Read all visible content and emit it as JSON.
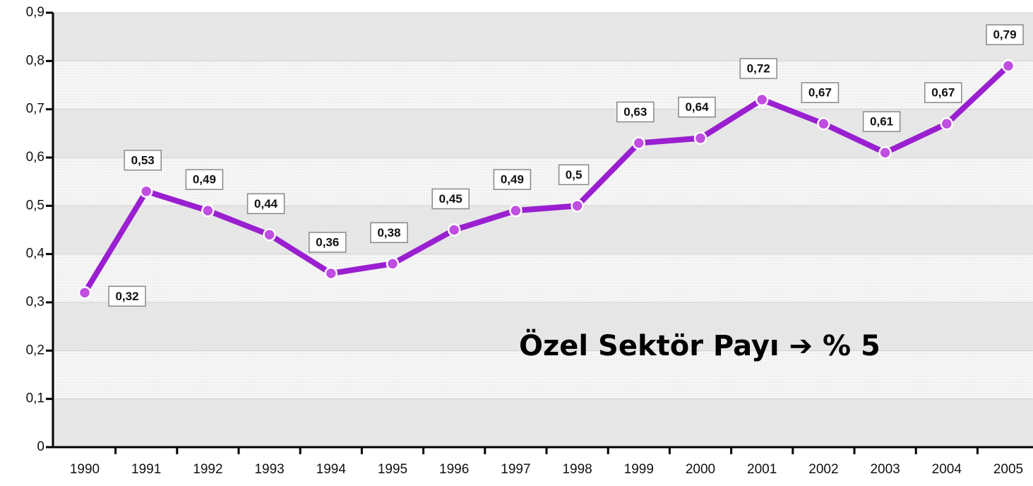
{
  "chart_data": {
    "type": "line",
    "annotation": "Özel Sektör Payı ➔ % 5",
    "categories": [
      "1990",
      "1991",
      "1992",
      "1993",
      "1994",
      "1995",
      "1996",
      "1997",
      "1998",
      "1999",
      "2000",
      "2001",
      "2002",
      "2003",
      "2004",
      "2005"
    ],
    "series": [
      {
        "color": "#9a1fd0",
        "values": [
          0.32,
          0.53,
          0.49,
          0.44,
          0.36,
          0.38,
          0.45,
          0.49,
          0.5,
          0.63,
          0.64,
          0.72,
          0.67,
          0.61,
          0.67,
          0.79
        ],
        "value_labels": [
          "0,32",
          "0,53",
          "0,49",
          "0,44",
          "0,36",
          "0,38",
          "0,45",
          "0,49",
          "0,5",
          "0,63",
          "0,64",
          "0,72",
          "0,67",
          "0,61",
          "0,67",
          "0,79"
        ]
      }
    ],
    "ylim": [
      0,
      0.9
    ],
    "yticks": [
      0,
      {
        "value": 0.1,
        "label": "0,1"
      },
      {
        "value": 0.2,
        "label": "0,2"
      },
      {
        "value": 0.3,
        "label": "0,3"
      },
      {
        "value": 0.4,
        "label": "0,4"
      },
      {
        "value": 0.5,
        "label": "0,5"
      },
      {
        "value": 0.6,
        "label": "0,6"
      },
      {
        "value": 0.7,
        "label": "0,7"
      },
      {
        "value": 0.8,
        "label": "0,8"
      },
      {
        "value": 0.9,
        "label": "0,9"
      }
    ],
    "grid": true
  }
}
